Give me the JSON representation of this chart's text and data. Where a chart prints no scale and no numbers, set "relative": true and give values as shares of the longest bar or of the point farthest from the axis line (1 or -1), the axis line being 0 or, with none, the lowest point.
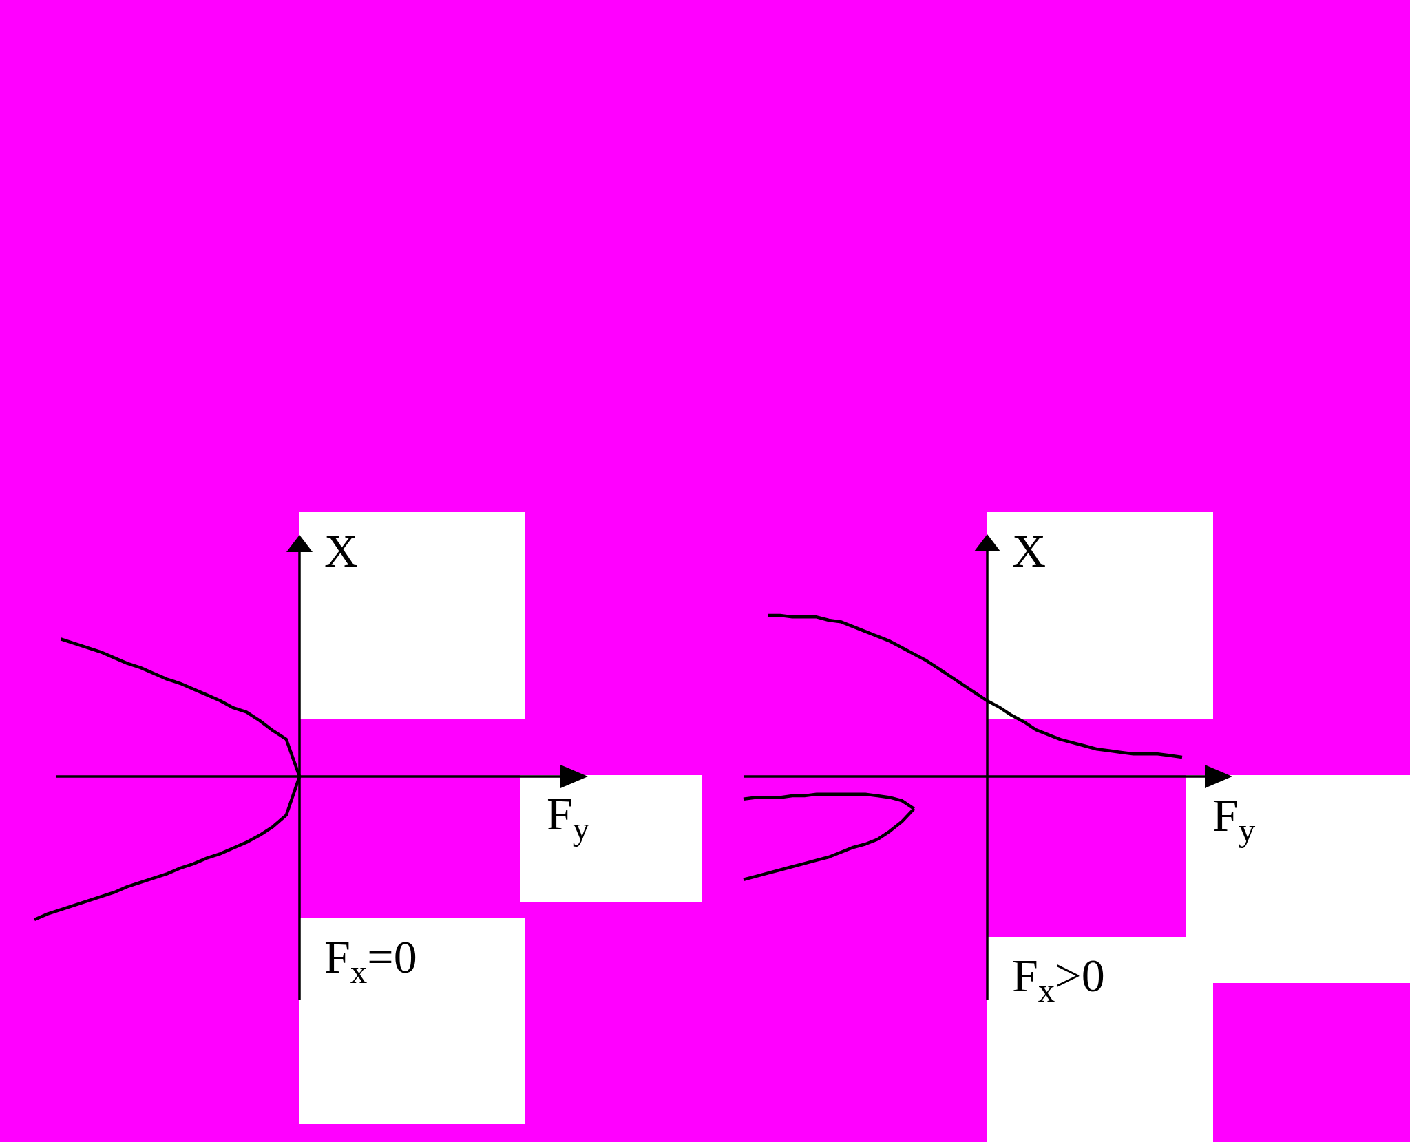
{
  "chart_data": [
    {
      "type": "line",
      "relative": true,
      "xlabel": "F$_{y}$",
      "ylabel": "X",
      "annotations": [
        "F$_{x}$=0"
      ],
      "categories": [
        null,
        null,
        null,
        null,
        null,
        null,
        null,
        null,
        null,
        null,
        null,
        null,
        null,
        null,
        null,
        null,
        null,
        null,
        null,
        null,
        null
      ],
      "series": [
        {
          "color": "#000000",
          "values": [
            null,
            null,
            0.96,
            0.93,
            0.9,
            0.87,
            0.83,
            0.79,
            0.76,
            0.72,
            0.68,
            0.65,
            0.61,
            0.57,
            0.53,
            0.48,
            0.45,
            0.39,
            0.32,
            0.26,
            0
          ]
        },
        {
          "color": "#000000",
          "values": [
            -1,
            -0.96,
            -0.93,
            -0.9,
            -0.87,
            -0.84,
            -0.81,
            -0.77,
            -0.74,
            -0.71,
            -0.68,
            -0.64,
            -0.61,
            -0.57,
            -0.54,
            -0.5,
            -0.46,
            -0.41,
            -0.35,
            -0.27,
            0
          ]
        }
      ]
    },
    {
      "type": "line",
      "relative": true,
      "xlabel": "F$_{y}$",
      "ylabel": "X",
      "annotations": [
        "F$_{x}$>0"
      ],
      "categories": [
        null,
        null,
        null,
        null,
        null,
        null,
        null,
        null,
        null,
        null,
        null,
        null,
        null,
        null,
        null,
        null,
        null,
        null,
        null,
        null,
        null,
        null,
        null,
        null,
        null,
        null,
        null,
        null,
        null,
        null,
        null,
        null,
        null,
        null,
        null,
        null,
        null
      ],
      "series": [
        {
          "color": "#000000",
          "values": [
            null,
            null,
            1,
            1,
            0.99,
            0.99,
            0.99,
            0.97,
            0.96,
            0.93,
            0.9,
            0.87,
            0.84,
            0.8,
            0.76,
            0.72,
            0.67,
            0.62,
            0.57,
            0.52,
            0.47,
            0.43,
            0.38,
            0.34,
            0.29,
            0.26,
            0.23,
            0.21,
            0.19,
            0.17,
            0.16,
            0.15,
            0.14,
            0.14,
            0.14,
            0.13,
            0.12
          ]
        },
        {
          "color": "#000000",
          "values": [
            -0.14,
            -0.13,
            -0.13,
            -0.13,
            -0.12,
            -0.12,
            -0.11,
            -0.11,
            -0.11,
            -0.11,
            -0.11,
            -0.12,
            -0.13,
            -0.15,
            -0.2,
            null,
            null,
            null,
            null,
            null,
            null,
            null,
            null,
            null,
            null,
            null,
            null,
            null,
            null,
            null,
            null,
            null,
            null,
            null,
            null,
            null,
            null
          ]
        },
        {
          "color": "#000000",
          "values": [
            -0.64,
            -0.62,
            -0.6,
            -0.58,
            -0.56,
            -0.54,
            -0.52,
            -0.5,
            -0.47,
            -0.44,
            -0.42,
            -0.39,
            -0.34,
            -0.28,
            -0.2,
            null,
            null,
            null,
            null,
            null,
            null,
            null,
            null,
            null,
            null,
            null,
            null,
            null,
            null,
            null,
            null,
            null,
            null,
            null,
            null,
            null,
            null
          ]
        }
      ]
    }
  ]
}
